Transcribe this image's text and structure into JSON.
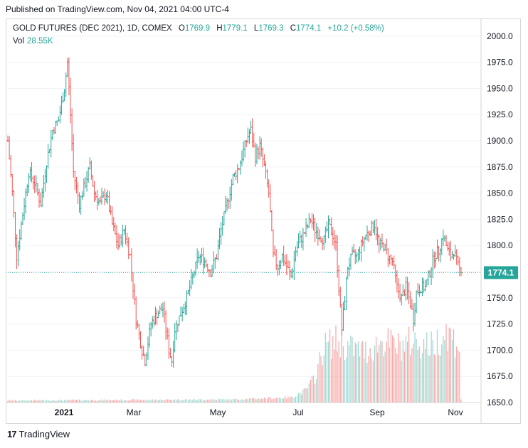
{
  "header": {
    "published": "Published on TradingView.com, Nov 04, 2021 04:00 UTC-4"
  },
  "legend": {
    "symbol": "GOLD FUTURES (DEC 2021), 1D, COMEX",
    "open_key": "O",
    "open": "1769.9",
    "high_key": "H",
    "high": "1779.1",
    "low_key": "L",
    "low": "1769.3",
    "close_key": "C",
    "close": "1774.1",
    "change": "+10.2 (+0.58%)",
    "vol_key": "Vol",
    "vol": "28.55K"
  },
  "footer": {
    "brand": "TradingView",
    "brand_icon": "tradingview-logo-icon"
  },
  "colors": {
    "up": "#26a69a",
    "down": "#ef5350",
    "vol_up": "#9fd6cf",
    "vol_down": "#f5a6a4",
    "grid": "#f0f3fa",
    "last": "#26a69a"
  },
  "chart_data": {
    "type": "ohlc",
    "ylim": [
      1650,
      2000
    ],
    "yticks": [
      "2000.0",
      "1975.0",
      "1950.0",
      "1925.0",
      "1900.0",
      "1875.0",
      "1850.0",
      "1825.0",
      "1800.0",
      "1775.0",
      "1750.0",
      "1725.0",
      "1700.0",
      "1675.0",
      "1650.0"
    ],
    "xticks": [
      "2021",
      "Mar",
      "May",
      "Jul",
      "Sep",
      "Nov"
    ],
    "last_price": "1774.1",
    "anchors": [
      {
        "i": 0,
        "p": 1900
      },
      {
        "i": 3,
        "p": 1850
      },
      {
        "i": 6,
        "p": 1790
      },
      {
        "i": 10,
        "p": 1830
      },
      {
        "i": 14,
        "p": 1870
      },
      {
        "i": 18,
        "p": 1860
      },
      {
        "i": 22,
        "p": 1840
      },
      {
        "i": 26,
        "p": 1880
      },
      {
        "i": 30,
        "p": 1910
      },
      {
        "i": 34,
        "p": 1920
      },
      {
        "i": 38,
        "p": 1950
      },
      {
        "i": 40,
        "p": 1975
      },
      {
        "i": 42,
        "p": 1925
      },
      {
        "i": 44,
        "p": 1870
      },
      {
        "i": 48,
        "p": 1840
      },
      {
        "i": 52,
        "p": 1860
      },
      {
        "i": 55,
        "p": 1875
      },
      {
        "i": 58,
        "p": 1850
      },
      {
        "i": 62,
        "p": 1840
      },
      {
        "i": 66,
        "p": 1850
      },
      {
        "i": 70,
        "p": 1820
      },
      {
        "i": 74,
        "p": 1800
      },
      {
        "i": 78,
        "p": 1815
      },
      {
        "i": 82,
        "p": 1790
      },
      {
        "i": 84,
        "p": 1760
      },
      {
        "i": 86,
        "p": 1730
      },
      {
        "i": 90,
        "p": 1700
      },
      {
        "i": 92,
        "p": 1690
      },
      {
        "i": 96,
        "p": 1725
      },
      {
        "i": 100,
        "p": 1735
      },
      {
        "i": 104,
        "p": 1740
      },
      {
        "i": 108,
        "p": 1700
      },
      {
        "i": 110,
        "p": 1690
      },
      {
        "i": 112,
        "p": 1720
      },
      {
        "i": 116,
        "p": 1735
      },
      {
        "i": 120,
        "p": 1750
      },
      {
        "i": 124,
        "p": 1770
      },
      {
        "i": 128,
        "p": 1790
      },
      {
        "i": 132,
        "p": 1785
      },
      {
        "i": 136,
        "p": 1775
      },
      {
        "i": 140,
        "p": 1790
      },
      {
        "i": 143,
        "p": 1815
      },
      {
        "i": 147,
        "p": 1840
      },
      {
        "i": 151,
        "p": 1865
      },
      {
        "i": 155,
        "p": 1875
      },
      {
        "i": 158,
        "p": 1890
      },
      {
        "i": 161,
        "p": 1905
      },
      {
        "i": 163,
        "p": 1910
      },
      {
        "i": 166,
        "p": 1885
      },
      {
        "i": 169,
        "p": 1895
      },
      {
        "i": 172,
        "p": 1875
      },
      {
        "i": 175,
        "p": 1850
      },
      {
        "i": 178,
        "p": 1790
      },
      {
        "i": 181,
        "p": 1780
      },
      {
        "i": 184,
        "p": 1790
      },
      {
        "i": 187,
        "p": 1780
      },
      {
        "i": 190,
        "p": 1770
      },
      {
        "i": 193,
        "p": 1795
      },
      {
        "i": 196,
        "p": 1805
      },
      {
        "i": 200,
        "p": 1815
      },
      {
        "i": 203,
        "p": 1825
      },
      {
        "i": 206,
        "p": 1815
      },
      {
        "i": 209,
        "p": 1810
      },
      {
        "i": 212,
        "p": 1805
      },
      {
        "i": 215,
        "p": 1820
      },
      {
        "i": 218,
        "p": 1810
      },
      {
        "i": 220,
        "p": 1800
      },
      {
        "i": 222,
        "p": 1760
      },
      {
        "i": 224,
        "p": 1720
      },
      {
        "i": 226,
        "p": 1750
      },
      {
        "i": 228,
        "p": 1780
      },
      {
        "i": 231,
        "p": 1790
      },
      {
        "i": 234,
        "p": 1790
      },
      {
        "i": 237,
        "p": 1800
      },
      {
        "i": 240,
        "p": 1810
      },
      {
        "i": 243,
        "p": 1815
      },
      {
        "i": 246,
        "p": 1820
      },
      {
        "i": 249,
        "p": 1800
      },
      {
        "i": 252,
        "p": 1800
      },
      {
        "i": 255,
        "p": 1790
      },
      {
        "i": 258,
        "p": 1785
      },
      {
        "i": 261,
        "p": 1760
      },
      {
        "i": 264,
        "p": 1750
      },
      {
        "i": 267,
        "p": 1760
      },
      {
        "i": 270,
        "p": 1745
      },
      {
        "i": 272,
        "p": 1730
      },
      {
        "i": 274,
        "p": 1755
      },
      {
        "i": 277,
        "p": 1760
      },
      {
        "i": 280,
        "p": 1760
      },
      {
        "i": 283,
        "p": 1775
      },
      {
        "i": 286,
        "p": 1790
      },
      {
        "i": 289,
        "p": 1795
      },
      {
        "i": 292,
        "p": 1810
      },
      {
        "i": 295,
        "p": 1795
      },
      {
        "i": 297,
        "p": 1790
      },
      {
        "i": 299,
        "p": 1795
      },
      {
        "i": 302,
        "p": 1780
      },
      {
        "i": 304,
        "p": 1774
      }
    ],
    "volume_profile": [
      {
        "i": 0,
        "v": 0.02
      },
      {
        "i": 150,
        "v": 0.03
      },
      {
        "i": 190,
        "v": 0.05
      },
      {
        "i": 200,
        "v": 0.12
      },
      {
        "i": 206,
        "v": 0.25
      },
      {
        "i": 212,
        "v": 0.55
      },
      {
        "i": 220,
        "v": 0.6
      },
      {
        "i": 226,
        "v": 0.55
      },
      {
        "i": 240,
        "v": 0.5
      },
      {
        "i": 252,
        "v": 0.6
      },
      {
        "i": 262,
        "v": 0.55
      },
      {
        "i": 272,
        "v": 0.6
      },
      {
        "i": 285,
        "v": 0.55
      },
      {
        "i": 294,
        "v": 0.7
      },
      {
        "i": 300,
        "v": 0.6
      },
      {
        "i": 303,
        "v": 0.55
      },
      {
        "i": 304,
        "v": 0.03
      }
    ]
  }
}
